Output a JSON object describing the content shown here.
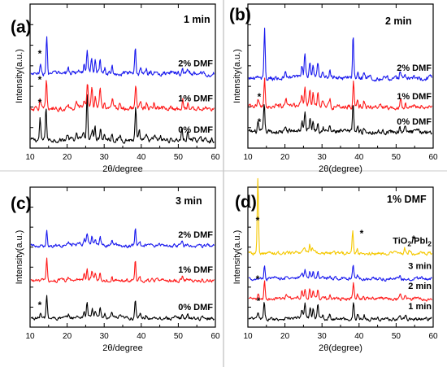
{
  "colors": {
    "black": "#000000",
    "red": "#ff1a1a",
    "blue": "#1a1aee",
    "yellow": "#f5c800"
  },
  "chart_data": [
    {
      "type": "line",
      "panel": "(a)",
      "annotation": "1 min",
      "xlabel": "2θ/degree",
      "ylabel": "Intensity(a.u.)",
      "xlim": [
        10,
        60
      ],
      "xticks": [
        "10",
        "20",
        "30",
        "40",
        "50",
        "60"
      ],
      "markers": [
        "*",
        "*",
        "*"
      ],
      "series": [
        {
          "name": "0% DMF",
          "color": "#000000",
          "offset": 0,
          "peaks": [
            [
              12.7,
              6.0
            ],
            [
              14.3,
              9.5
            ],
            [
              20.1,
              1.6
            ],
            [
              22.6,
              1.1
            ],
            [
              24.5,
              1.8
            ],
            [
              25.4,
              12.5
            ],
            [
              26.8,
              2.5
            ],
            [
              27.5,
              4.0
            ],
            [
              29.0,
              3.5
            ],
            [
              30.1,
              1.5
            ],
            [
              32.1,
              2.0
            ],
            [
              34.3,
              1.2
            ],
            [
              38.5,
              9.0
            ],
            [
              39.5,
              2.0
            ],
            [
              41.4,
              1.2
            ],
            [
              43.6,
              1.3
            ],
            [
              45.2,
              0.8
            ],
            [
              51.0,
              3.5
            ],
            [
              52.5,
              2.0
            ],
            [
              54.2,
              1.0
            ]
          ]
        },
        {
          "name": "1% DMF",
          "color": "#ff1a1a",
          "offset": 9,
          "peaks": [
            [
              12.7,
              2.5
            ],
            [
              14.4,
              8.0
            ],
            [
              20.3,
              1.4
            ],
            [
              22.5,
              1.2
            ],
            [
              24.6,
              2.0
            ],
            [
              25.5,
              7.5
            ],
            [
              26.7,
              5.5
            ],
            [
              27.6,
              3.8
            ],
            [
              28.9,
              5.0
            ],
            [
              30.1,
              1.6
            ],
            [
              32.2,
              2.4
            ],
            [
              34.2,
              1.6
            ],
            [
              38.5,
              7.0
            ],
            [
              39.8,
              2.0
            ],
            [
              41.4,
              1.6
            ],
            [
              43.5,
              1.6
            ],
            [
              51.2,
              2.4
            ],
            [
              52.6,
              1.6
            ]
          ]
        },
        {
          "name": "2% DMF",
          "color": "#1a1aee",
          "offset": 19,
          "peaks": [
            [
              12.8,
              2.0
            ],
            [
              14.5,
              10.5
            ],
            [
              20.3,
              1.3
            ],
            [
              24.6,
              2.2
            ],
            [
              25.4,
              6.0
            ],
            [
              26.6,
              4.0
            ],
            [
              27.6,
              3.0
            ],
            [
              28.9,
              4.0
            ],
            [
              30.2,
              1.5
            ],
            [
              32.1,
              2.2
            ],
            [
              38.4,
              8.0
            ],
            [
              39.8,
              1.6
            ],
            [
              41.3,
              1.3
            ],
            [
              43.6,
              1.4
            ],
            [
              51.1,
              2.2
            ],
            [
              52.5,
              1.3
            ]
          ]
        }
      ]
    },
    {
      "type": "line",
      "panel": "(b)",
      "annotation": "2 min",
      "xlabel": "2θ(degree)",
      "ylabel": "Intensity(a.u.)",
      "xlim": [
        10,
        60
      ],
      "xticks": [
        "10",
        "20",
        "30",
        "40",
        "50",
        "60"
      ],
      "markers": [
        "*",
        "*"
      ],
      "series": [
        {
          "name": "0% DMF",
          "color": "#000000",
          "offset": 0,
          "peaks": [
            [
              12.7,
              2.5
            ],
            [
              14.4,
              8.0
            ],
            [
              20.2,
              1.2
            ],
            [
              24.6,
              2.5
            ],
            [
              25.4,
              4.5
            ],
            [
              26.8,
              3.5
            ],
            [
              27.6,
              2.5
            ],
            [
              28.9,
              3.0
            ],
            [
              30.3,
              1.5
            ],
            [
              32.1,
              1.8
            ],
            [
              38.4,
              8.5
            ],
            [
              39.7,
              1.5
            ],
            [
              41.3,
              1.2
            ],
            [
              51.0,
              1.8
            ],
            [
              52.4,
              1.2
            ]
          ]
        },
        {
          "name": "1% DMF",
          "color": "#ff1a1a",
          "offset": 7,
          "peaks": [
            [
              12.8,
              2.0
            ],
            [
              14.5,
              8.5
            ],
            [
              20.3,
              1.4
            ],
            [
              24.6,
              2.8
            ],
            [
              25.4,
              5.0
            ],
            [
              26.7,
              4.5
            ],
            [
              27.6,
              3.0
            ],
            [
              28.9,
              3.5
            ],
            [
              30.2,
              1.5
            ],
            [
              32.2,
              1.8
            ],
            [
              38.5,
              8.0
            ],
            [
              39.6,
              1.7
            ],
            [
              41.3,
              1.4
            ],
            [
              51.2,
              2.0
            ],
            [
              52.5,
              1.4
            ]
          ]
        },
        {
          "name": "2% DMF",
          "color": "#1a1aee",
          "offset": 15,
          "peaks": [
            [
              14.5,
              14.0
            ],
            [
              20.2,
              1.3
            ],
            [
              24.6,
              2.8
            ],
            [
              25.4,
              6.5
            ],
            [
              26.7,
              4.0
            ],
            [
              27.6,
              3.0
            ],
            [
              28.9,
              4.0
            ],
            [
              30.2,
              1.4
            ],
            [
              32.1,
              2.0
            ],
            [
              38.4,
              12.0
            ],
            [
              39.7,
              1.6
            ],
            [
              41.3,
              1.2
            ],
            [
              51.1,
              2.2
            ],
            [
              52.4,
              1.2
            ]
          ]
        }
      ]
    },
    {
      "type": "line",
      "panel": "(c)",
      "annotation": "3 min",
      "xlabel": "2θ/degree",
      "ylabel": "Intensity(a.u.)",
      "xlim": [
        10,
        60
      ],
      "xticks": [
        "10",
        "20",
        "30",
        "40",
        "50",
        "60"
      ],
      "markers": [
        "*"
      ],
      "series": [
        {
          "name": "0% DMF",
          "color": "#000000",
          "offset": 0,
          "peaks": [
            [
              12.8,
              2.0
            ],
            [
              14.5,
              8.5
            ],
            [
              20.3,
              1.2
            ],
            [
              24.6,
              2.0
            ],
            [
              25.4,
              5.5
            ],
            [
              26.8,
              2.8
            ],
            [
              27.6,
              2.5
            ],
            [
              28.9,
              3.2
            ],
            [
              30.2,
              1.2
            ],
            [
              32.1,
              2.0
            ],
            [
              34.3,
              1.0
            ],
            [
              38.4,
              7.5
            ],
            [
              39.7,
              1.4
            ],
            [
              41.3,
              1.0
            ],
            [
              43.6,
              1.2
            ],
            [
              51.0,
              1.8
            ],
            [
              52.5,
              1.2
            ]
          ]
        },
        {
          "name": "1% DMF",
          "color": "#ff1a1a",
          "offset": 14,
          "peaks": [
            [
              14.5,
              8.0
            ],
            [
              20.3,
              1.0
            ],
            [
              24.6,
              1.8
            ],
            [
              25.4,
              3.5
            ],
            [
              26.7,
              2.6
            ],
            [
              27.6,
              2.0
            ],
            [
              28.9,
              2.6
            ],
            [
              32.1,
              1.6
            ],
            [
              38.4,
              7.5
            ],
            [
              39.6,
              1.3
            ],
            [
              51.1,
              1.6
            ]
          ]
        },
        {
          "name": "2% DMF",
          "color": "#1a1aee",
          "offset": 27,
          "peaks": [
            [
              14.5,
              6.0
            ],
            [
              20.3,
              1.0
            ],
            [
              24.6,
              2.0
            ],
            [
              25.4,
              3.5
            ],
            [
              26.7,
              2.4
            ],
            [
              27.6,
              2.0
            ],
            [
              28.9,
              2.8
            ],
            [
              32.1,
              1.5
            ],
            [
              38.4,
              6.5
            ],
            [
              39.6,
              1.2
            ],
            [
              51.1,
              1.8
            ],
            [
              52.5,
              1.0
            ]
          ]
        }
      ]
    },
    {
      "type": "line",
      "panel": "(d)",
      "annotation": "1% DMF",
      "xlabel": "2θ(degree)",
      "ylabel": "Intensity(a.u.)",
      "xlim": [
        10,
        60
      ],
      "xticks": [
        "10",
        "20",
        "30",
        "40",
        "50",
        "60"
      ],
      "markers": [
        "*",
        "*",
        "*",
        "*",
        "*"
      ],
      "series": [
        {
          "name": "1 min",
          "color": "#000000",
          "offset": 0,
          "peaks": [
            [
              12.7,
              2.5
            ],
            [
              14.4,
              6.0
            ],
            [
              20.2,
              1.2
            ],
            [
              24.6,
              3.0
            ],
            [
              25.4,
              6.0
            ],
            [
              26.8,
              4.0
            ],
            [
              27.6,
              3.5
            ],
            [
              28.9,
              5.0
            ],
            [
              30.2,
              1.5
            ],
            [
              32.1,
              2.0
            ],
            [
              38.5,
              6.5
            ],
            [
              39.7,
              1.8
            ],
            [
              41.4,
              1.5
            ],
            [
              43.5,
              1.2
            ],
            [
              51.0,
              1.5
            ],
            [
              52.5,
              1.2
            ]
          ]
        },
        {
          "name": "2 min",
          "color": "#ff1a1a",
          "offset": 8,
          "peaks": [
            [
              12.8,
              2.5
            ],
            [
              14.5,
              7.0
            ],
            [
              20.3,
              1.2
            ],
            [
              24.6,
              2.5
            ],
            [
              25.4,
              4.0
            ],
            [
              26.7,
              3.5
            ],
            [
              27.6,
              3.0
            ],
            [
              28.9,
              3.5
            ],
            [
              32.2,
              1.5
            ],
            [
              38.5,
              6.0
            ],
            [
              39.6,
              1.5
            ],
            [
              41.3,
              1.2
            ],
            [
              51.2,
              1.5
            ],
            [
              52.5,
              1.2
            ]
          ]
        },
        {
          "name": "3 min",
          "color": "#1a1aee",
          "offset": 16,
          "peaks": [
            [
              14.5,
              5.5
            ],
            [
              20.3,
              1.0
            ],
            [
              24.6,
              1.5
            ],
            [
              25.4,
              3.0
            ],
            [
              26.7,
              2.5
            ],
            [
              27.6,
              2.0
            ],
            [
              28.9,
              2.5
            ],
            [
              32.1,
              1.2
            ],
            [
              38.4,
              5.0
            ],
            [
              39.6,
              1.0
            ],
            [
              51.1,
              1.5
            ]
          ]
        },
        {
          "name": "TiO2/PbI2",
          "color": "#f5c800",
          "offset": 26,
          "peaks": [
            [
              12.7,
              30.0
            ],
            [
              25.3,
              2.0
            ],
            [
              26.7,
              3.0
            ],
            [
              27.4,
              2.0
            ],
            [
              38.3,
              9.0
            ],
            [
              39.5,
              1.5
            ],
            [
              52.3,
              2.5
            ],
            [
              53.5,
              1.0
            ]
          ]
        }
      ]
    }
  ]
}
